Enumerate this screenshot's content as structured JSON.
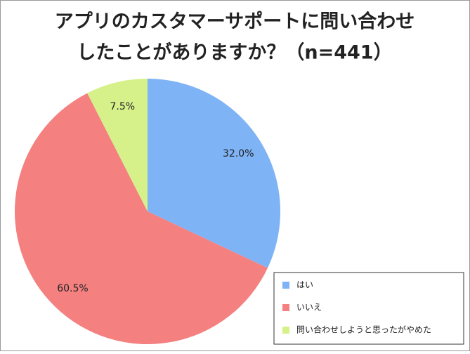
{
  "chart_data": {
    "type": "pie",
    "title": [
      "アプリのカスタマーサポートに問い合わせ",
      "したことがありますか？（n=441）"
    ],
    "categories": [
      "はい",
      "いいえ",
      "問い合わせしようと思ったがやめた"
    ],
    "values": [
      32.0,
      60.5,
      7.5
    ],
    "value_labels": [
      "32.0%",
      "60.5%",
      "7.5%"
    ],
    "colors": [
      "#7eb3f5",
      "#f48080",
      "#d6f08a"
    ],
    "legend": "lower right"
  }
}
